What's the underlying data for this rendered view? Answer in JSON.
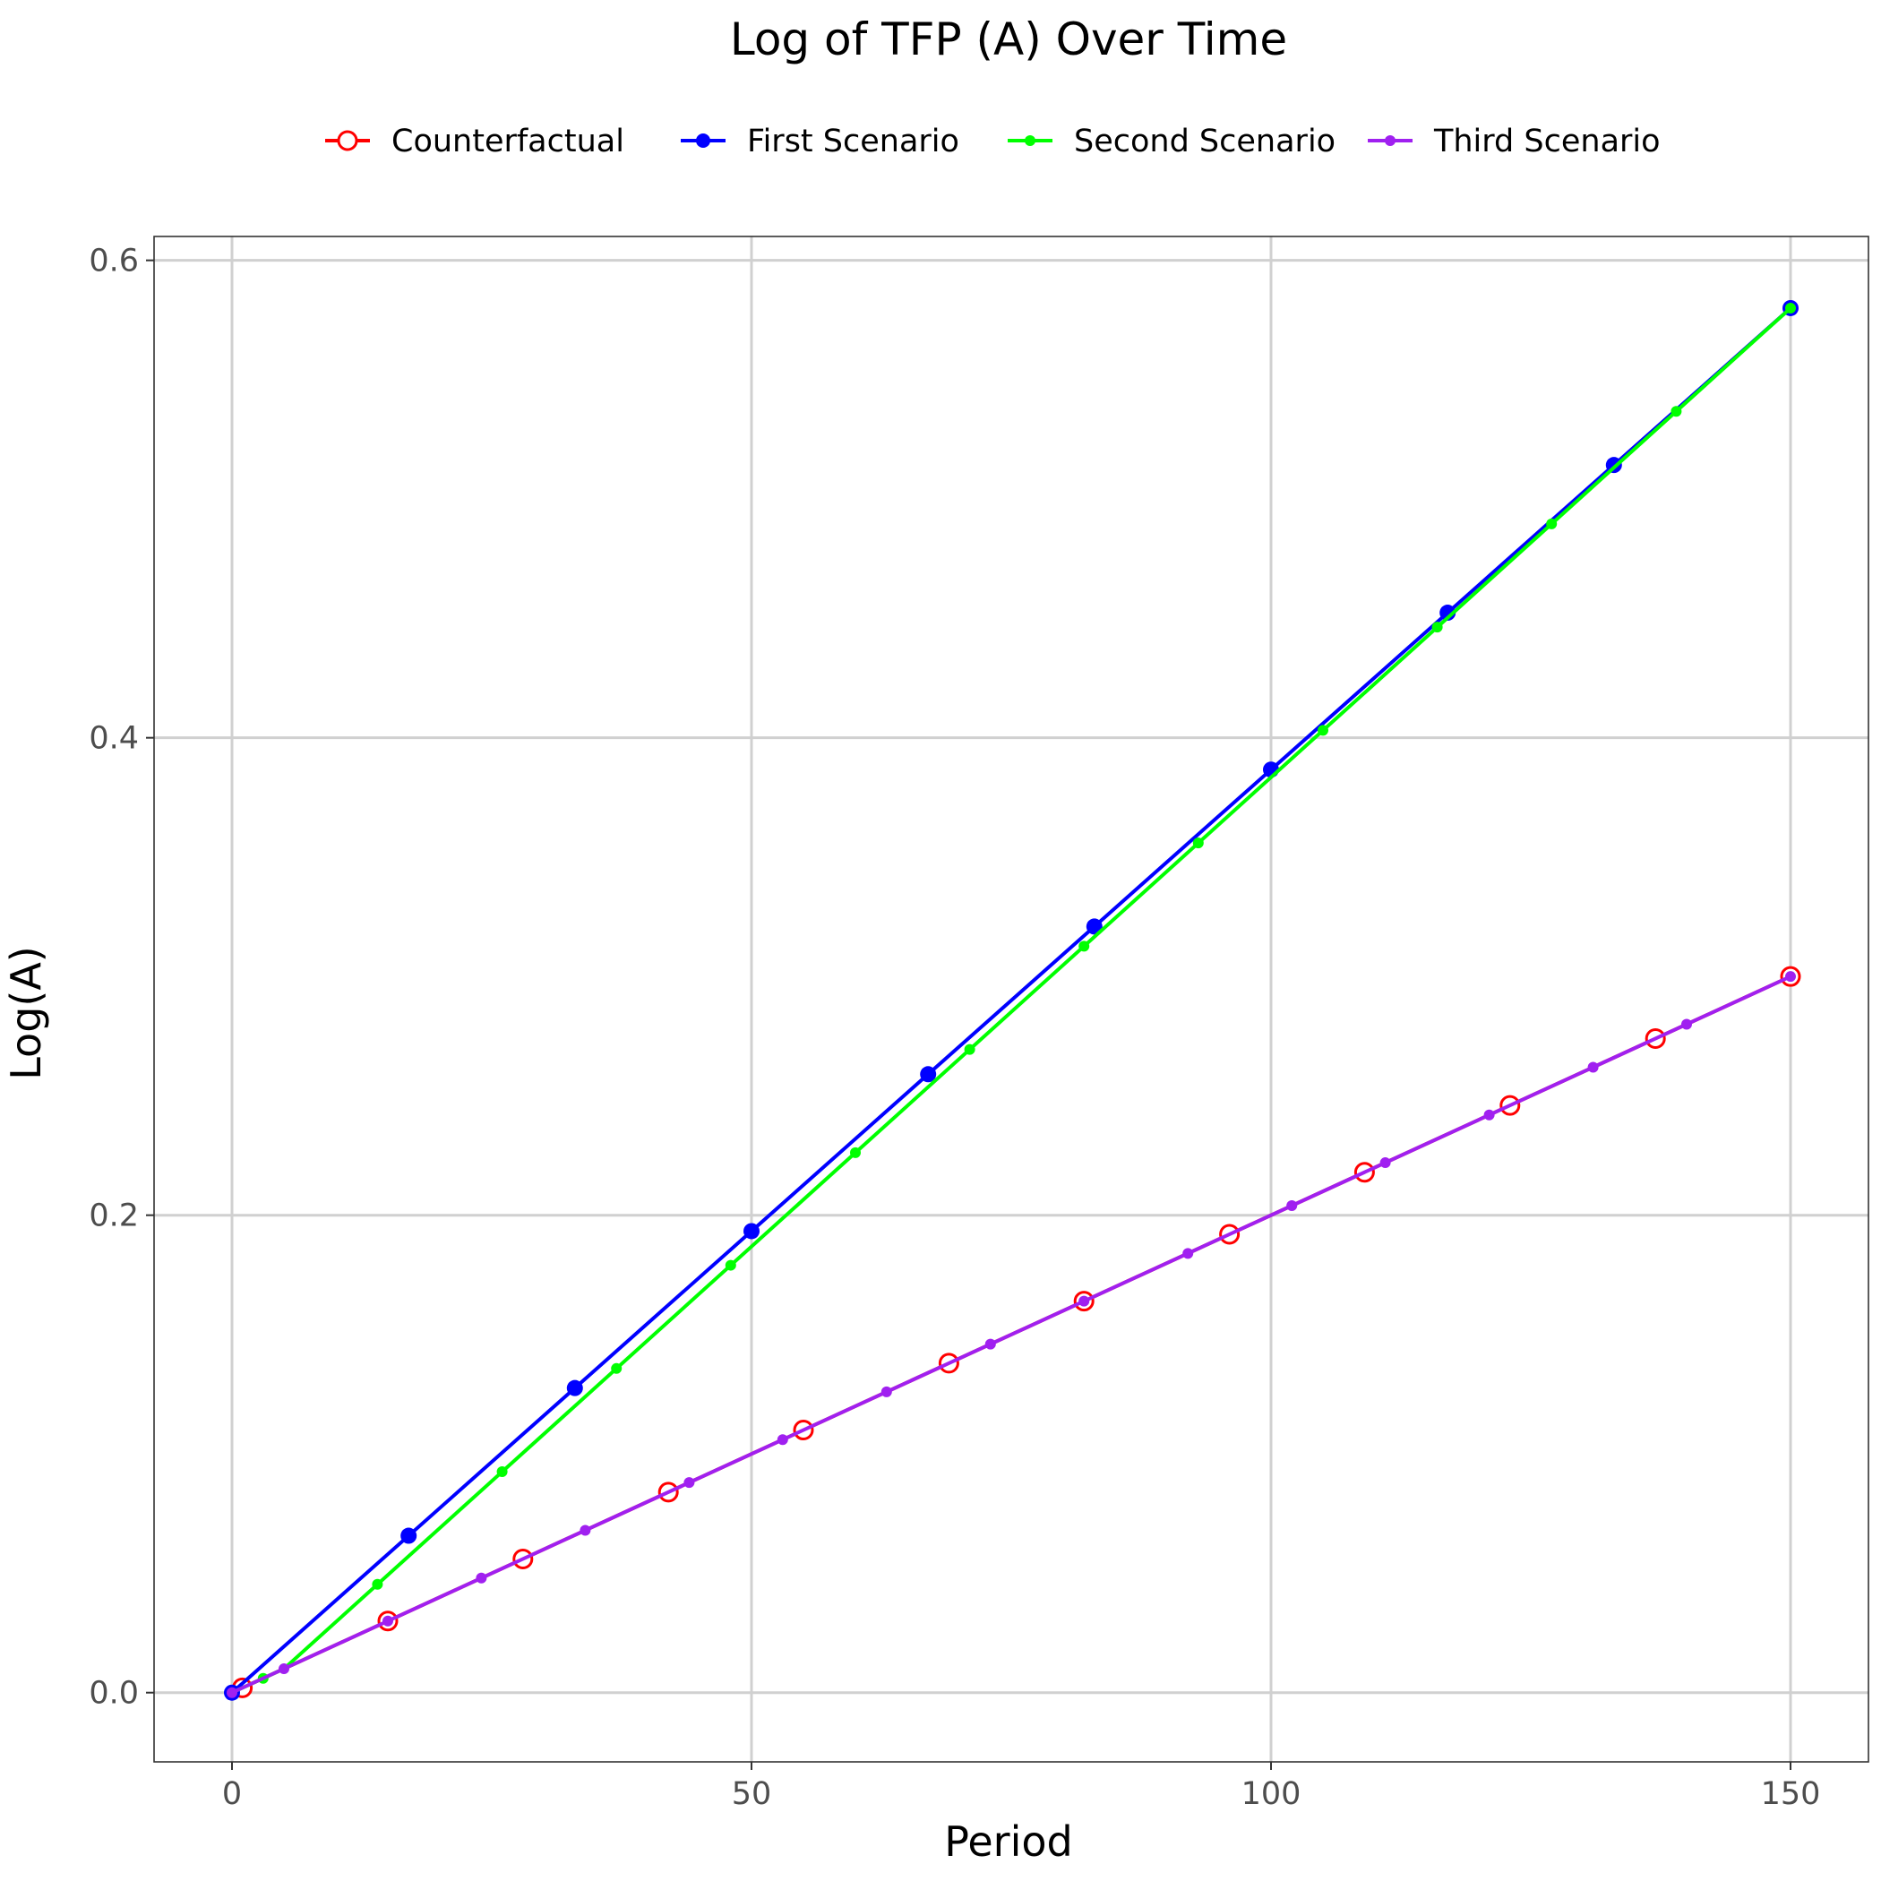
{
  "chart_data": {
    "type": "line",
    "title": "Log of TFP (A) Over Time",
    "xlabel": "Period",
    "ylabel": "Log(A)",
    "xlim": [
      -7.5,
      157.5
    ],
    "ylim": [
      -0.029,
      0.61
    ],
    "x_ticks": [
      0,
      50,
      100,
      150
    ],
    "x_tick_labels": [
      "0",
      "50",
      "100",
      "150"
    ],
    "y_ticks": [
      0.0,
      0.2,
      0.4,
      0.6
    ],
    "y_tick_labels": [
      "0.0",
      "0.2",
      "0.4",
      "0.6"
    ],
    "grid": true,
    "legend_position": "top",
    "series": [
      {
        "name": "Counterfactual",
        "color": "#ff0000",
        "marker": "hollow-circle",
        "x": [
          0,
          150
        ],
        "y": [
          0,
          0.3
        ],
        "marker_x": [
          1,
          15,
          28,
          42,
          55,
          69,
          82,
          96,
          109,
          123,
          137,
          150
        ]
      },
      {
        "name": "First Scenario",
        "color": "#0000ff",
        "marker": "filled-circle",
        "x": [
          0,
          150
        ],
        "y": [
          0,
          0.58
        ],
        "marker_x": [
          0,
          17,
          33,
          50,
          67,
          83,
          100,
          117,
          133,
          150
        ]
      },
      {
        "name": "Second Scenario",
        "color": "#00ff00",
        "marker": "small-dot",
        "x": [
          0,
          5,
          150
        ],
        "y": [
          0,
          0.01,
          0.58
        ],
        "marker_x": [
          3,
          14,
          26,
          37,
          48,
          60,
          71,
          82,
          93,
          105,
          116,
          127,
          139,
          150
        ]
      },
      {
        "name": "Third Scenario",
        "color": "#a020f0",
        "marker": "small-dot",
        "x": [
          0,
          150
        ],
        "y": [
          0,
          0.3
        ],
        "marker_x": [
          0,
          5,
          15,
          24,
          34,
          44,
          53,
          63,
          73,
          82,
          92,
          102,
          111,
          121,
          131,
          140,
          150
        ]
      }
    ]
  }
}
